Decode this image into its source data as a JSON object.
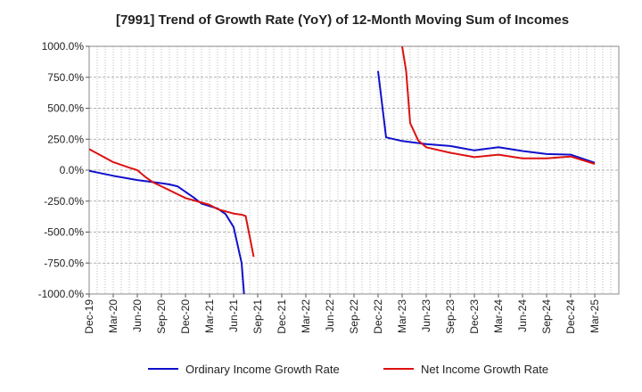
{
  "chart_data": {
    "type": "line",
    "title": "[7991]  Trend of Growth Rate (YoY) of 12-Month Moving Sum of Incomes",
    "xlabel": "",
    "ylabel": "",
    "ylim": [
      -1000,
      1000
    ],
    "y_ticks": [
      {
        "value": 1000,
        "label": "1000.0%"
      },
      {
        "value": 750,
        "label": "750.0%"
      },
      {
        "value": 500,
        "label": "500.0%"
      },
      {
        "value": 250,
        "label": "250.0%"
      },
      {
        "value": 0,
        "label": "0.0%"
      },
      {
        "value": -250,
        "label": "-250.0%"
      },
      {
        "value": -500,
        "label": "-500.0%"
      },
      {
        "value": -750,
        "label": "-750.0%"
      },
      {
        "value": -1000,
        "label": "-1000.0%"
      }
    ],
    "x_tick_labels": [
      "Dec-19",
      "Mar-20",
      "Jun-20",
      "Sep-20",
      "Dec-20",
      "Mar-21",
      "Jun-21",
      "Sep-21",
      "Dec-21",
      "Mar-22",
      "Jun-22",
      "Sep-22",
      "Dec-22",
      "Mar-23",
      "Jun-23",
      "Sep-23",
      "Dec-23",
      "Mar-24",
      "Jun-24",
      "Sep-24",
      "Dec-24",
      "Mar-25"
    ],
    "grid": true,
    "legend_position": "bottom",
    "series": [
      {
        "name": "Ordinary Income Growth Rate",
        "color": "#1010cc",
        "points": [
          {
            "m": 0,
            "v": -5
          },
          {
            "m": 3,
            "v": -45
          },
          {
            "m": 6,
            "v": -80
          },
          {
            "m": 9,
            "v": -105
          },
          {
            "m": 10,
            "v": -115
          },
          {
            "m": 11,
            "v": -130
          },
          {
            "m": 12,
            "v": -175
          },
          {
            "m": 13,
            "v": -220
          },
          {
            "m": 14,
            "v": -270
          },
          {
            "m": 15,
            "v": -290
          },
          {
            "m": 16,
            "v": -310
          },
          {
            "m": 17,
            "v": -355
          },
          {
            "m": 18,
            "v": -460
          },
          {
            "m": 19,
            "v": -750
          },
          {
            "m": 19.3,
            "v": -1000
          },
          {
            "m": null,
            "v": null
          },
          {
            "m": 36,
            "v": 800
          },
          {
            "m": 37,
            "v": 265
          },
          {
            "m": 39,
            "v": 235
          },
          {
            "m": 42,
            "v": 210
          },
          {
            "m": 45,
            "v": 195
          },
          {
            "m": 48,
            "v": 160
          },
          {
            "m": 51,
            "v": 185
          },
          {
            "m": 54,
            "v": 155
          },
          {
            "m": 57,
            "v": 130
          },
          {
            "m": 60,
            "v": 125
          },
          {
            "m": 63,
            "v": 60
          }
        ]
      },
      {
        "name": "Net Income Growth Rate",
        "color": "#dd1111",
        "points": [
          {
            "m": 0,
            "v": 170
          },
          {
            "m": 3,
            "v": 65
          },
          {
            "m": 5,
            "v": 20
          },
          {
            "m": 6,
            "v": 0
          },
          {
            "m": 7,
            "v": -55
          },
          {
            "m": 8,
            "v": -100
          },
          {
            "m": 9,
            "v": -130
          },
          {
            "m": 12,
            "v": -225
          },
          {
            "m": 15,
            "v": -280
          },
          {
            "m": 16,
            "v": -315
          },
          {
            "m": 18,
            "v": -350
          },
          {
            "m": 19,
            "v": -360
          },
          {
            "m": 19.5,
            "v": -370
          },
          {
            "m": 20.5,
            "v": -700
          },
          {
            "m": null,
            "v": null
          },
          {
            "m": 39,
            "v": 1000
          },
          {
            "m": 39.5,
            "v": 800
          },
          {
            "m": 40,
            "v": 380
          },
          {
            "m": 41,
            "v": 240
          },
          {
            "m": 42,
            "v": 185
          },
          {
            "m": 45,
            "v": 140
          },
          {
            "m": 48,
            "v": 105
          },
          {
            "m": 51,
            "v": 125
          },
          {
            "m": 54,
            "v": 95
          },
          {
            "m": 57,
            "v": 95
          },
          {
            "m": 60,
            "v": 110
          },
          {
            "m": 63,
            "v": 50
          }
        ]
      }
    ]
  }
}
